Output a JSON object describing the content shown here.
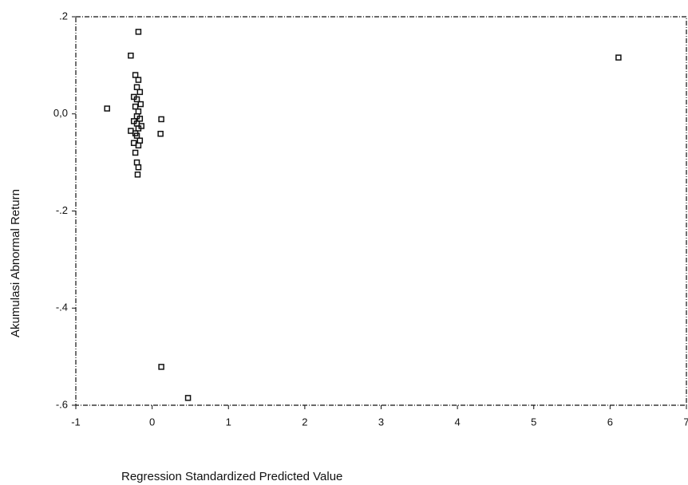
{
  "chart_data": {
    "type": "scatter",
    "xlabel": "Regression Standardized Predicted Value",
    "ylabel": "Akumulasi Abnormal Return",
    "xlim": [
      -1,
      7
    ],
    "xticks": [
      -1,
      0,
      1,
      2,
      3,
      4,
      5,
      6,
      7
    ],
    "ylim": [
      -0.6,
      0.2
    ],
    "yticks": [
      {
        "value": -0.6,
        "label": "-.6"
      },
      {
        "value": -0.4,
        "label": "-.4"
      },
      {
        "value": -0.2,
        "label": "-.2"
      },
      {
        "value": 0,
        "label": "0,0"
      },
      {
        "value": 0.2,
        "label": ".2"
      }
    ],
    "color": "#111111",
    "x": [
      -0.18,
      -0.28,
      -0.59,
      6.11,
      0.12,
      0.11,
      0.12,
      0.47,
      -0.22,
      -0.18,
      -0.2,
      -0.16,
      -0.24,
      -0.2,
      -0.15,
      -0.22,
      -0.18,
      -0.2,
      -0.16,
      -0.24,
      -0.2,
      -0.14,
      -0.18,
      -0.28,
      -0.22,
      -0.2,
      -0.16,
      -0.24,
      -0.18,
      -0.22,
      -0.2,
      -0.18,
      -0.19
    ],
    "y": [
      0.169,
      0.12,
      0.011,
      0.116,
      -0.011,
      -0.041,
      -0.521,
      -0.585,
      0.08,
      0.07,
      0.055,
      0.045,
      0.035,
      0.03,
      0.02,
      0.015,
      0.005,
      -0.005,
      -0.01,
      -0.015,
      -0.02,
      -0.025,
      -0.03,
      -0.035,
      -0.04,
      -0.045,
      -0.055,
      -0.06,
      -0.065,
      -0.08,
      -0.1,
      -0.11,
      -0.125
    ]
  }
}
